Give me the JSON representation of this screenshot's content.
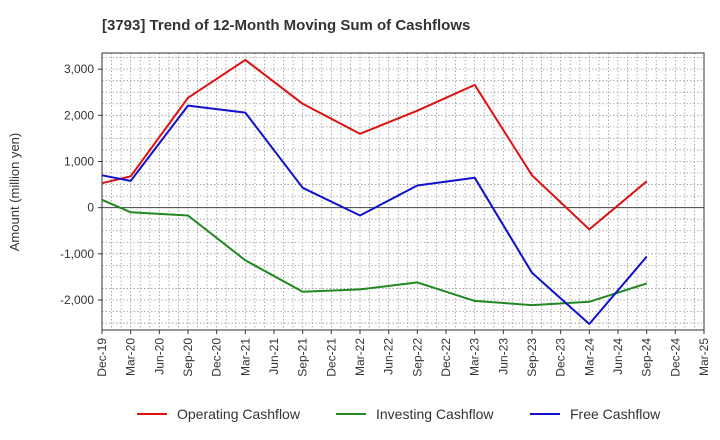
{
  "chart_data": {
    "type": "line",
    "title": "[3793]  Trend of 12-Month Moving Sum of Cashflows",
    "xlabel": "",
    "ylabel": "Amount (million yen)",
    "ylim": [
      -2650,
      3350
    ],
    "yticks": [
      3000,
      2000,
      1000,
      0,
      -1000,
      -2000
    ],
    "ytick_labels": [
      "3,000",
      "2,000",
      "1,000",
      "0",
      "-1,000",
      "-2,000"
    ],
    "categories": [
      "Dec-19",
      "Mar-20",
      "Jun-20",
      "Sep-20",
      "Dec-20",
      "Mar-21",
      "Jun-21",
      "Sep-21",
      "Dec-21",
      "Mar-22",
      "Jun-22",
      "Sep-22",
      "Dec-22",
      "Mar-23",
      "Jun-23",
      "Sep-23",
      "Dec-23",
      "Mar-24",
      "Jun-24",
      "Sep-24",
      "Dec-24",
      "Mar-25"
    ],
    "grid": true,
    "legend_position": "bottom",
    "series": [
      {
        "name": "Operating Cashflow",
        "color": "#dd1111",
        "x": [
          "Dec-19",
          "Mar-20",
          "Sep-20",
          "Mar-21",
          "Sep-21",
          "Mar-22",
          "Sep-22",
          "Mar-23",
          "Sep-23",
          "Mar-24",
          "Sep-24"
        ],
        "values": [
          530,
          680,
          2380,
          3200,
          2250,
          1600,
          2100,
          2660,
          700,
          -470,
          570
        ]
      },
      {
        "name": "Investing Cashflow",
        "color": "#228822",
        "x": [
          "Dec-19",
          "Mar-20",
          "Sep-20",
          "Mar-21",
          "Sep-21",
          "Mar-22",
          "Sep-22",
          "Mar-23",
          "Sep-23",
          "Mar-24",
          "Sep-24"
        ],
        "values": [
          170,
          -100,
          -170,
          -1140,
          -1820,
          -1770,
          -1620,
          -2020,
          -2110,
          -2040,
          -1640
        ]
      },
      {
        "name": "Free Cashflow",
        "color": "#1111cc",
        "x": [
          "Dec-19",
          "Mar-20",
          "Sep-20",
          "Mar-21",
          "Sep-21",
          "Mar-22",
          "Sep-22",
          "Mar-23",
          "Sep-23",
          "Mar-24",
          "Sep-24"
        ],
        "values": [
          700,
          580,
          2210,
          2060,
          430,
          -170,
          480,
          650,
          -1410,
          -2520,
          -1060
        ]
      }
    ]
  }
}
